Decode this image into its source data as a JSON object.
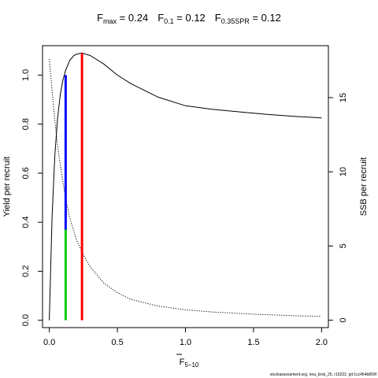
{
  "chart_data": {
    "type": "line",
    "title": {
      "fmax": {
        "label": "F",
        "sub": "max",
        "value": " = 0.24"
      },
      "f01": {
        "label": "F",
        "sub": "0.1",
        "value": " = 0.12"
      },
      "f035": {
        "label": "F",
        "sub": "0.35SPR",
        "value": " = 0.12"
      }
    },
    "xlabel": {
      "main": "F",
      "sub": "5−10"
    },
    "ylabel": "Yield per recruit",
    "y2label": "SSB per recruit",
    "xlim": [
      -0.05,
      2.05
    ],
    "ylim": [
      -0.03,
      1.12
    ],
    "y2lim": [
      -0.5,
      18.5
    ],
    "x_ticks": [
      "0.0",
      "0.5",
      "1.0",
      "1.5",
      "2.0"
    ],
    "y_ticks": [
      "0.0",
      "0.2",
      "0.4",
      "0.6",
      "0.8",
      "1.0"
    ],
    "y2_ticks": [
      "0",
      "5",
      "10",
      "15"
    ],
    "series": [
      {
        "axis": "left",
        "style": "solid",
        "color": "#000000",
        "x": [
          0,
          0.02,
          0.04,
          0.06,
          0.08,
          0.1,
          0.12,
          0.15,
          0.18,
          0.2,
          0.24,
          0.3,
          0.4,
          0.5,
          0.6,
          0.8,
          1.0,
          1.2,
          1.4,
          1.6,
          1.8,
          2.0
        ],
        "y": [
          0,
          0.42,
          0.67,
          0.82,
          0.92,
          0.98,
          1.02,
          1.06,
          1.08,
          1.085,
          1.09,
          1.08,
          1.045,
          1.0,
          0.965,
          0.91,
          0.875,
          0.86,
          0.85,
          0.84,
          0.832,
          0.825
        ]
      },
      {
        "axis": "right",
        "style": "dotted",
        "color": "#000000",
        "x": [
          0,
          0.02,
          0.04,
          0.06,
          0.08,
          0.1,
          0.12,
          0.15,
          0.2,
          0.25,
          0.3,
          0.4,
          0.5,
          0.6,
          0.8,
          1.0,
          1.2,
          1.5,
          1.8,
          2.0
        ],
        "y": [
          17.6,
          15.5,
          13.5,
          11.8,
          10.5,
          9.3,
          8.2,
          6.9,
          5.4,
          4.4,
          3.6,
          2.5,
          1.85,
          1.4,
          0.95,
          0.7,
          0.55,
          0.4,
          0.3,
          0.25
        ]
      }
    ],
    "reference_lines": [
      {
        "name": "F0.1 yield segment",
        "x": 0.12,
        "y_from": 0.37,
        "y_to": 1.0,
        "color": "#0000ff"
      },
      {
        "name": "F0.35SPR segment",
        "x": 0.12,
        "y_from": 0.0,
        "y_to": 0.37,
        "color": "#00cc00"
      },
      {
        "name": "Fmax line",
        "x": 0.24,
        "y_from": 0.0,
        "y_to": 1.09,
        "color": "#ff0000"
      }
    ]
  },
  "footer": "stockassessment.org, nea_brsk_25, r19222, git:1cc464b809f"
}
